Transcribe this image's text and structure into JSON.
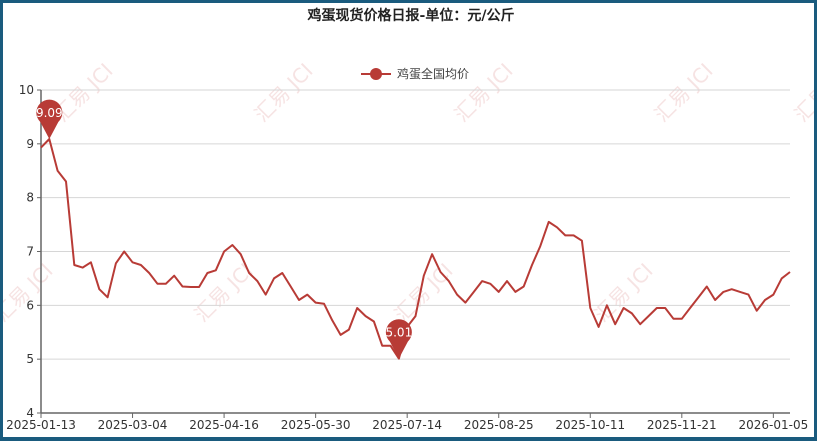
{
  "chart_data": {
    "type": "line",
    "title": "鸡蛋现货价格日报-单位：元/公斤",
    "legend": {
      "position": "top-center",
      "entries": [
        "鸡蛋全国均价"
      ]
    },
    "x_tick_labels": [
      "2025-01-13",
      "2025-03-04",
      "2025-04-16",
      "2025-05-30",
      "2025-07-14",
      "2025-08-25",
      "2025-10-11",
      "2025-11-21",
      "2026-01-05"
    ],
    "x_tick_every": 11,
    "ylim": [
      4,
      10
    ],
    "y_ticks": [
      4,
      5,
      6,
      7,
      8,
      9,
      10
    ],
    "grid": true,
    "series": [
      {
        "name": "鸡蛋全国均价",
        "color": "#b83b36",
        "values": [
          8.93,
          9.09,
          8.5,
          8.3,
          6.75,
          6.7,
          6.8,
          6.3,
          6.15,
          6.78,
          7.0,
          6.8,
          6.75,
          6.6,
          6.4,
          6.4,
          6.55,
          6.35,
          6.34,
          6.34,
          6.6,
          6.65,
          7.0,
          7.12,
          6.95,
          6.6,
          6.45,
          6.2,
          6.5,
          6.6,
          6.35,
          6.1,
          6.2,
          6.05,
          6.03,
          5.72,
          5.45,
          5.55,
          5.95,
          5.8,
          5.7,
          5.25,
          5.25,
          5.01,
          5.6,
          5.8,
          6.55,
          6.95,
          6.62,
          6.45,
          6.2,
          6.05,
          6.25,
          6.45,
          6.4,
          6.25,
          6.45,
          6.25,
          6.35,
          6.75,
          7.1,
          7.55,
          7.45,
          7.3,
          7.3,
          7.2,
          5.95,
          5.6,
          6.0,
          5.65,
          5.95,
          5.85,
          5.65,
          5.8,
          5.95,
          5.95,
          5.75,
          5.75,
          5.95,
          6.15,
          6.35,
          6.1,
          6.25,
          6.3,
          6.25,
          6.2,
          5.9,
          6.1,
          6.2,
          6.5,
          6.62
        ]
      }
    ],
    "mark_points": [
      {
        "label": "9.09",
        "value": 9.09,
        "type": "max"
      },
      {
        "label": "5.01",
        "value": 5.01,
        "type": "min"
      }
    ]
  },
  "watermark": "汇易 JCI"
}
